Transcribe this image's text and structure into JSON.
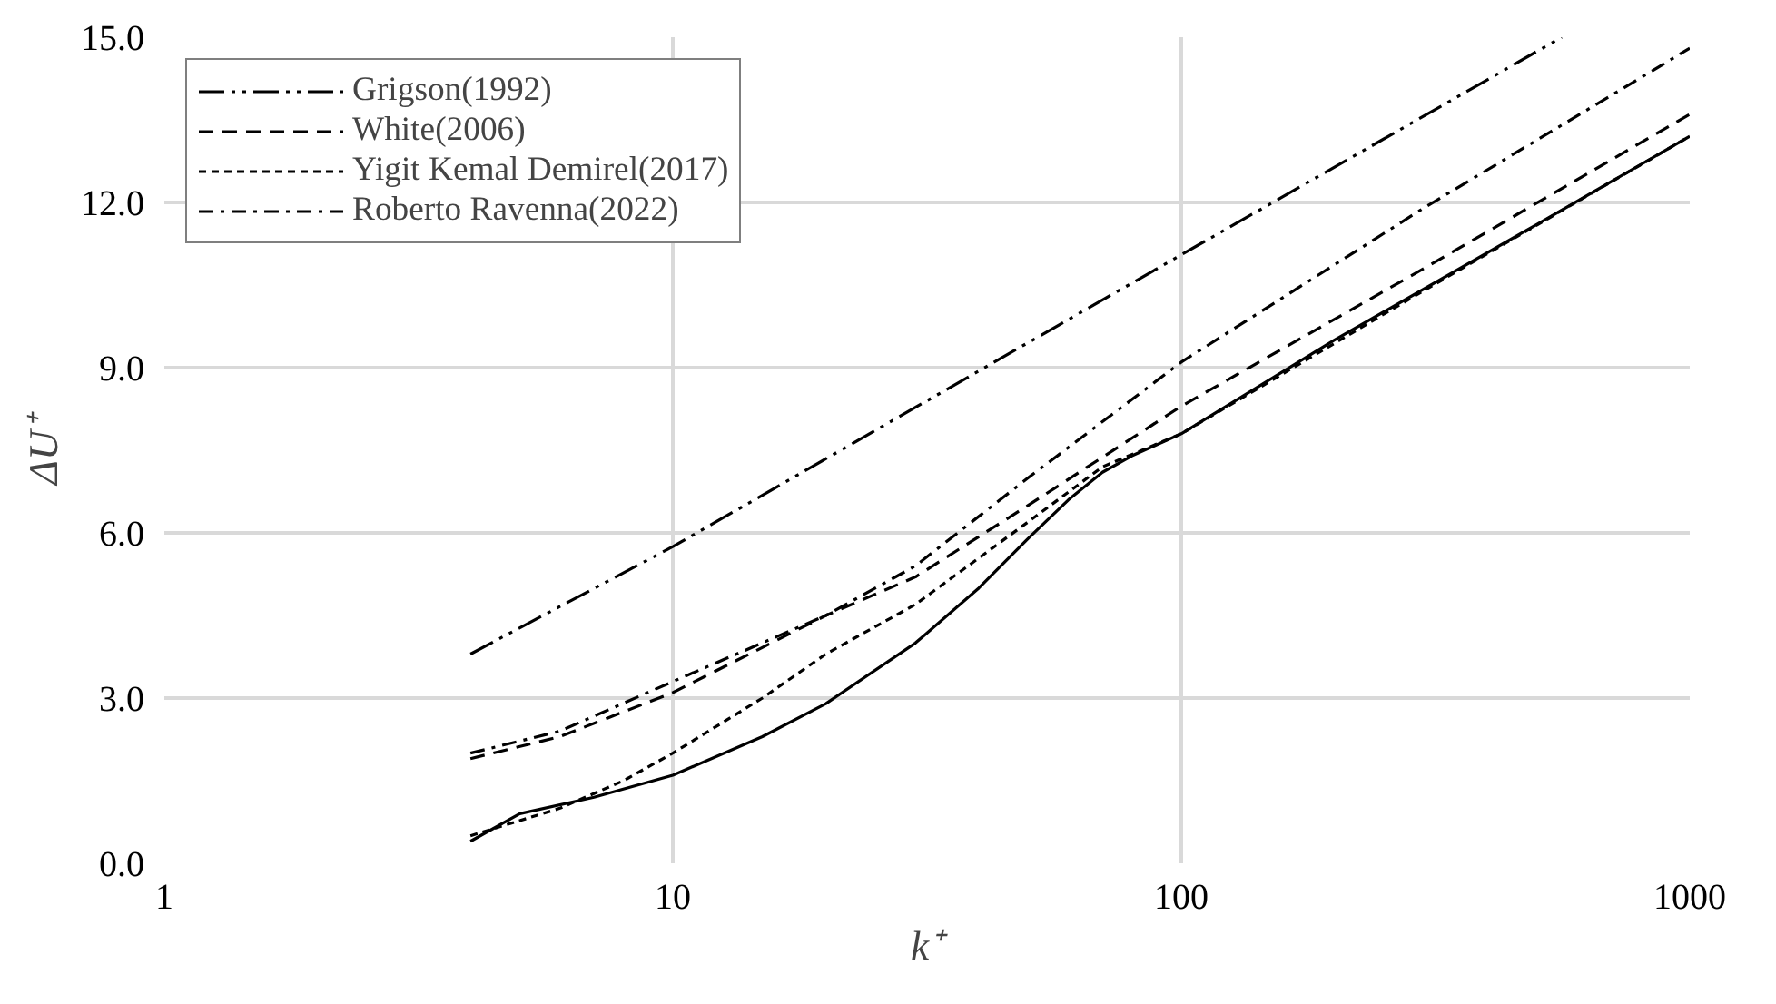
{
  "chart_data": {
    "type": "line",
    "xlabel": "k⁺",
    "ylabel": "ΔU⁺",
    "log": "x",
    "xlim": [
      1,
      1000
    ],
    "xticks": [
      1,
      10,
      100,
      1000
    ],
    "ylim": [
      0,
      15
    ],
    "yticks": [
      {
        "value": 0,
        "label": "0.0"
      },
      {
        "value": 3,
        "label": "3.0"
      },
      {
        "value": 6,
        "label": "6.0"
      },
      {
        "value": 9,
        "label": "9.0"
      },
      {
        "value": 12,
        "label": "12.0"
      },
      {
        "value": 15,
        "label": "15.0"
      }
    ],
    "grid": true,
    "legend": "top left",
    "marker": "none",
    "series": [
      {
        "color": "#000000",
        "line_style": "solid",
        "x": [
          4,
          5,
          7,
          10,
          15,
          20,
          30,
          40,
          50,
          60,
          70,
          80,
          100,
          200,
          500,
          1000
        ],
        "values": [
          0.4,
          0.9,
          1.2,
          1.6,
          2.3,
          2.9,
          4.0,
          5.0,
          5.9,
          6.6,
          7.1,
          7.4,
          7.8,
          9.5,
          11.6,
          13.2
        ]
      },
      {
        "name": "Grigson(1992)",
        "color": "#000000",
        "line_style": "dashdotdot",
        "x": [
          4,
          10,
          100,
          560
        ],
        "values": [
          3.8,
          5.75,
          11.05,
          15
        ]
      },
      {
        "name": "White(2006)",
        "color": "#000000",
        "line_style": "dashed",
        "x": [
          4,
          6,
          10,
          20,
          30,
          50,
          100,
          300,
          1000
        ],
        "values": [
          1.9,
          2.3,
          3.1,
          4.5,
          5.2,
          6.5,
          8.3,
          10.8,
          13.6
        ]
      },
      {
        "name": "Yigit Kemal Demirel(2017)",
        "color": "#000000",
        "line_style": "dotted",
        "x": [
          4,
          6,
          8,
          10,
          15,
          20,
          30,
          50,
          70,
          100,
          300,
          1000
        ],
        "values": [
          0.5,
          1.0,
          1.5,
          2.0,
          3.0,
          3.8,
          4.7,
          6.2,
          7.2,
          7.8,
          10.4,
          13.2
        ]
      },
      {
        "name": "Roberto Ravenna(2022)",
        "color": "#000000",
        "line_style": "dashdot",
        "x": [
          4,
          6,
          10,
          20,
          30,
          50,
          100,
          300,
          1000
        ],
        "values": [
          2.0,
          2.4,
          3.3,
          4.5,
          5.4,
          7.0,
          9.1,
          11.9,
          14.8
        ]
      }
    ]
  }
}
